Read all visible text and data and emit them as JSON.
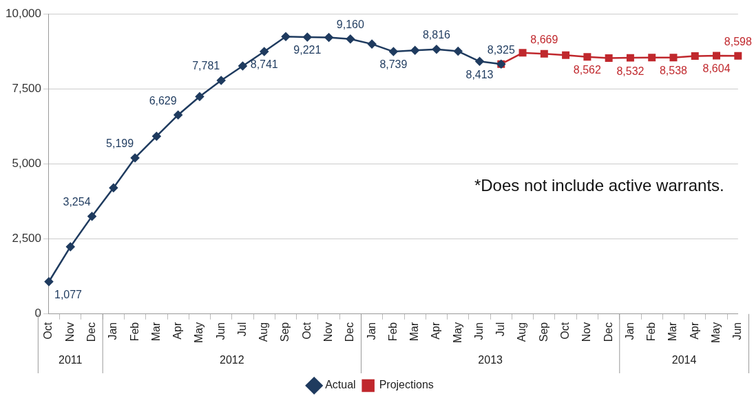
{
  "chart_data": {
    "type": "line",
    "categories": [
      "Oct",
      "Nov",
      "Dec",
      "Jan",
      "Feb",
      "Mar",
      "Apr",
      "May",
      "Jun",
      "Jul",
      "Aug",
      "Sep",
      "Oct",
      "Nov",
      "Dec",
      "Jan",
      "Feb",
      "Mar",
      "Apr",
      "May",
      "Jun",
      "Jul",
      "Aug",
      "Sep",
      "Oct",
      "Nov",
      "Dec",
      "Jan",
      "Feb",
      "Mar",
      "Apr",
      "May",
      "Jun"
    ],
    "series": [
      {
        "name": "Actual",
        "color": "#1f3b5f",
        "marker": "diamond",
        "values": [
          1077,
          2240,
          3254,
          4200,
          5199,
          5920,
          6629,
          7240,
          7781,
          8260,
          8741,
          9240,
          9221,
          9210,
          9160,
          8990,
          8739,
          8780,
          8816,
          8750,
          8413,
          8325,
          null,
          null,
          null,
          null,
          null,
          null,
          null,
          null,
          null,
          null,
          null
        ],
        "value_labels": [
          "1,077",
          null,
          "3,254",
          null,
          "5,199",
          null,
          "6,629",
          null,
          "7,781",
          null,
          "8,741",
          null,
          "9,221",
          null,
          "9,160",
          null,
          "8,739",
          null,
          "8,816",
          null,
          "8,413",
          "8,325",
          null,
          null,
          null,
          null,
          null,
          null,
          null,
          null,
          null,
          null,
          null
        ]
      },
      {
        "name": "Projections",
        "color": "#c0282d",
        "marker": "square",
        "values": [
          null,
          null,
          null,
          null,
          null,
          null,
          null,
          null,
          null,
          null,
          null,
          null,
          null,
          null,
          null,
          null,
          null,
          null,
          null,
          null,
          null,
          8325,
          8700,
          8669,
          8620,
          8562,
          8525,
          8532,
          8540,
          8538,
          8590,
          8604,
          8598
        ],
        "value_labels": [
          null,
          null,
          null,
          null,
          null,
          null,
          null,
          null,
          null,
          null,
          null,
          null,
          null,
          null,
          null,
          null,
          null,
          null,
          null,
          null,
          null,
          null,
          null,
          "8,669",
          null,
          "8,562",
          null,
          "8,532",
          null,
          "8,538",
          null,
          "8,604",
          "8,598"
        ]
      }
    ],
    "ylim": [
      0,
      10000
    ],
    "yticks": [
      {
        "value": 0,
        "label": "0"
      },
      {
        "value": 2500,
        "label": "2,500"
      },
      {
        "value": 5000,
        "label": "5,000"
      },
      {
        "value": 7500,
        "label": "7,500"
      },
      {
        "value": 10000,
        "label": "10,000"
      }
    ],
    "grid": "y",
    "legend": "bottom",
    "line_style": "solid",
    "annotations": [
      "*Does not include active warrants.",
      "2011",
      "2012",
      "2013",
      "2014"
    ]
  }
}
